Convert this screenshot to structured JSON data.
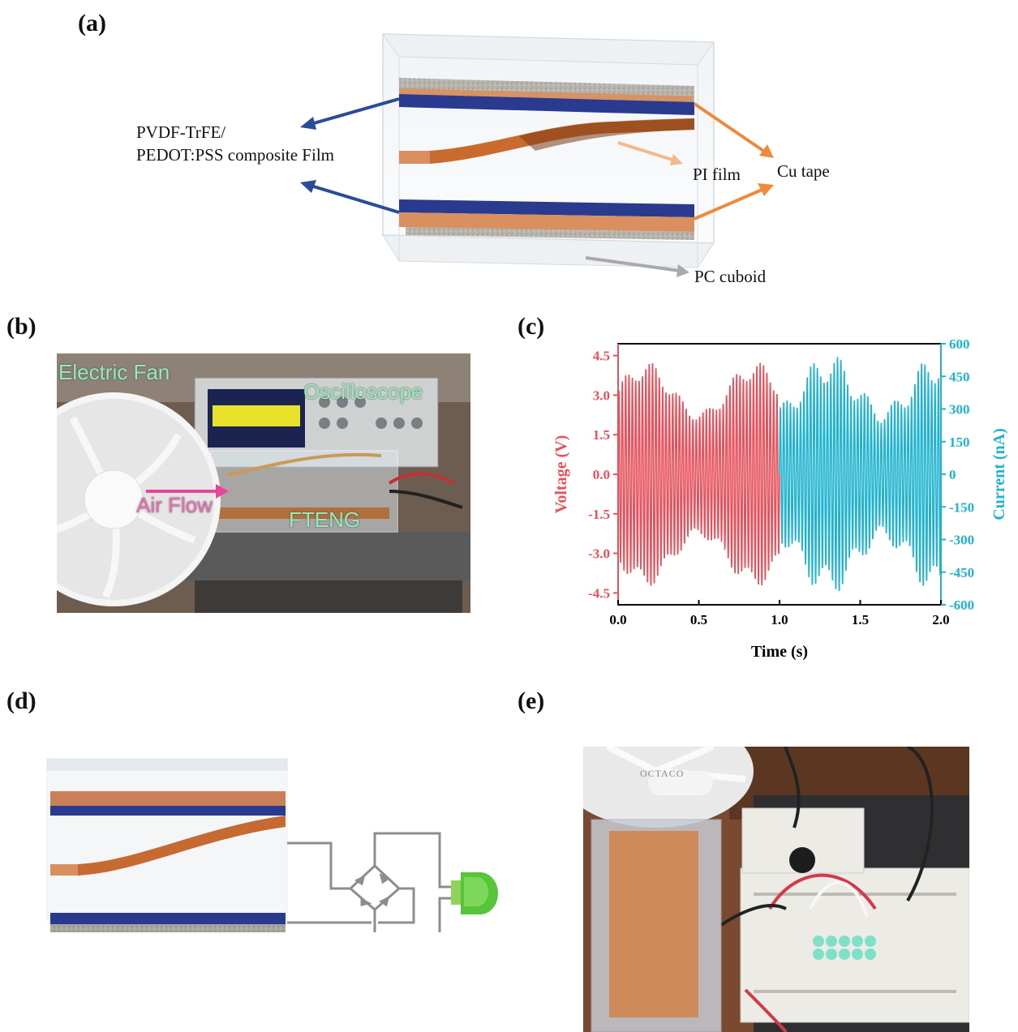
{
  "panels": {
    "a": {
      "label": "(a)"
    },
    "b": {
      "label": "(b)"
    },
    "c": {
      "label": "(c)"
    },
    "d": {
      "label": "(d)"
    },
    "e": {
      "label": "(e)"
    }
  },
  "figure_a": {
    "composite_film_line1": "PVDF-TrFE/",
    "composite_film_line2": "PEDOT:PSS composite Film",
    "pi_film": "PI film",
    "cu_tape": "Cu tape",
    "pc_cuboid": "PC cuboid"
  },
  "figure_b": {
    "electric_fan": "Electric Fan",
    "oscilloscope": "Oscilloscope",
    "air_flow": "Air Flow",
    "fteng": "FTENG"
  },
  "figure_e": {
    "fan_brand": "OCTACO"
  },
  "colors": {
    "voltage": "#e8505b",
    "current": "#1fb3cf",
    "copper": "#d9905e",
    "blue_film": "#2a3a8f"
  },
  "chart_data": {
    "type": "line",
    "xlabel": "Time (s)",
    "ylabel_left": "Voltage (V)",
    "ylabel_right": "Current (nA)",
    "xlim": [
      0,
      2.0
    ],
    "ylim_left": [
      -4.95,
      4.95
    ],
    "ylim_right": [
      -600,
      600
    ],
    "x_ticks": [
      "0.0",
      "0.5",
      "1.0",
      "1.5",
      "2.0"
    ],
    "y_ticks_left": [
      "4.5",
      "3.0",
      "1.5",
      "0.0",
      "-1.5",
      "-3.0",
      "-4.5"
    ],
    "y_ticks_right": [
      "600",
      "450",
      "300",
      "150",
      "0",
      "-150",
      "-300",
      "-450",
      "-600"
    ],
    "series": [
      {
        "name": "Voltage",
        "axis": "left",
        "x_range": [
          0,
          1.0
        ],
        "oscillation_hz": 48,
        "amplitude_min": 3.6,
        "amplitude_max": 4.3
      },
      {
        "name": "Current",
        "axis": "right",
        "x_range": [
          1.0,
          2.0
        ],
        "oscillation_hz": 48,
        "amplitude_min": 420,
        "amplitude_max": 560
      }
    ]
  }
}
